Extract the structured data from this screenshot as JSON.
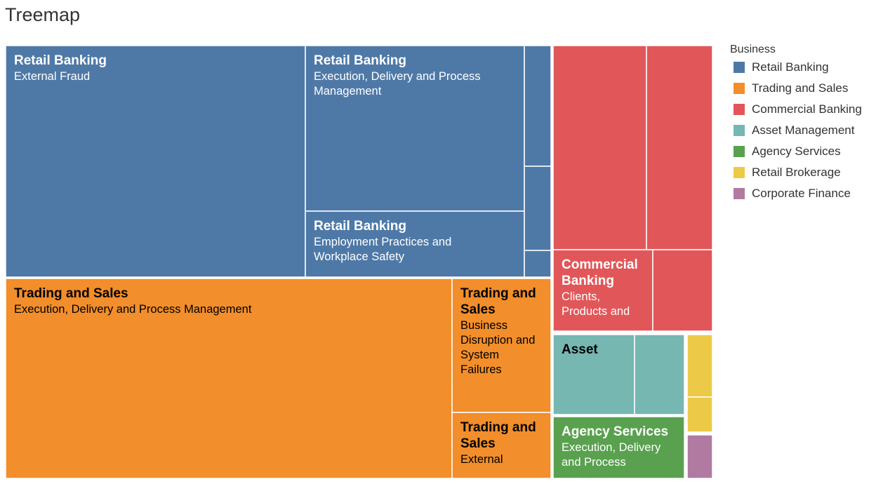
{
  "title": "Treemap",
  "legend": {
    "title": "Business",
    "items": [
      {
        "label": "Retail Banking",
        "color": "#4e79a7"
      },
      {
        "label": "Trading and Sales",
        "color": "#f28e2b"
      },
      {
        "label": "Commercial Banking",
        "color": "#e15759"
      },
      {
        "label": "Asset Management",
        "color": "#76b7b2"
      },
      {
        "label": "Agency Services",
        "color": "#59a14f"
      },
      {
        "label": "Retail Brokerage",
        "color": "#edc948"
      },
      {
        "label": "Corporate Finance",
        "color": "#b07aa1"
      }
    ]
  },
  "chart_data": {
    "type": "treemap",
    "title": "Treemap",
    "color_by": "Business",
    "tiles": [
      {
        "business": "Retail Banking",
        "heading": "Retail Banking",
        "label": "External Fraud",
        "value": 42.3
      },
      {
        "business": "Retail Banking",
        "heading": "Retail Banking",
        "label": "Execution, Delivery and Process Management",
        "value": 22.0
      },
      {
        "business": "Retail Banking",
        "heading": "Retail Banking",
        "label": "Employment Practices and Workplace Safety",
        "value": 9.3
      },
      {
        "business": "Retail Banking",
        "heading": "",
        "label": "",
        "value": 1.9
      },
      {
        "business": "Retail Banking",
        "heading": "",
        "label": "",
        "value": 1.3
      },
      {
        "business": "Retail Banking",
        "heading": "",
        "label": "",
        "value": 0.4
      },
      {
        "business": "Trading and Sales",
        "heading": "Trading and Sales",
        "label": "Execution, Delivery and Process Management",
        "value": 54.8
      },
      {
        "business": "Trading and Sales",
        "heading": "Trading and Sales",
        "label": "Business Disruption and System Failures",
        "value": 7.8
      },
      {
        "business": "Trading and Sales",
        "heading": "Trading and Sales",
        "label": "External",
        "value": 3.9
      },
      {
        "business": "Commercial Banking",
        "heading": "",
        "label": "",
        "value": 11.4
      },
      {
        "business": "Commercial Banking",
        "heading": "",
        "label": "",
        "value": 8.2
      },
      {
        "business": "Commercial Banking",
        "heading": "Commercial Banking",
        "label": "Clients, Products and",
        "value": 4.9
      },
      {
        "business": "Commercial Banking",
        "heading": "",
        "label": "",
        "value": 2.8
      },
      {
        "business": "Asset Management",
        "heading": "Asset",
        "label": "",
        "value": 3.7
      },
      {
        "business": "Asset Management",
        "heading": "",
        "label": "",
        "value": 2.3
      },
      {
        "business": "Agency Services",
        "heading": "Agency Services",
        "label": "Execution, Delivery and Process",
        "value": 4.4
      },
      {
        "business": "Retail Brokerage",
        "heading": "",
        "label": "",
        "value": 0.9
      },
      {
        "business": "Retail Brokerage",
        "heading": "",
        "label": "",
        "value": 0.5
      },
      {
        "business": "Corporate Finance",
        "heading": "",
        "label": "",
        "value": 0.6
      }
    ]
  }
}
